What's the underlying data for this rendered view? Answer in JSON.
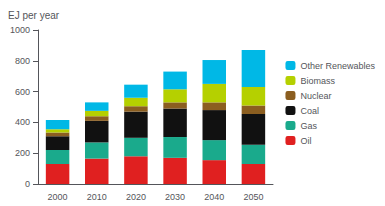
{
  "chart_data": {
    "type": "bar",
    "stacked": true,
    "ylabel": "EJ per year",
    "categories": [
      "2000",
      "2010",
      "2020",
      "2030",
      "2040",
      "2050"
    ],
    "series": [
      {
        "name": "Oil",
        "color": "#e02020",
        "values": [
          130,
          165,
          180,
          170,
          155,
          130
        ]
      },
      {
        "name": "Gas",
        "color": "#1aaa8c",
        "values": [
          90,
          105,
          120,
          135,
          130,
          125
        ]
      },
      {
        "name": "Coal",
        "color": "#111111",
        "values": [
          90,
          140,
          170,
          185,
          195,
          200
        ]
      },
      {
        "name": "Nuclear",
        "color": "#8b5e20",
        "values": [
          25,
          30,
          35,
          40,
          50,
          55
        ]
      },
      {
        "name": "Biomass",
        "color": "#b5d000",
        "values": [
          20,
          35,
          55,
          85,
          120,
          120
        ]
      },
      {
        "name": "Other Renewables",
        "color": "#00b8e6",
        "values": [
          60,
          55,
          85,
          115,
          155,
          240
        ]
      }
    ],
    "ylim": [
      0,
      1000
    ],
    "yticks": [
      0,
      200,
      400,
      600,
      800,
      1000
    ],
    "grid": false,
    "legend": "right"
  }
}
